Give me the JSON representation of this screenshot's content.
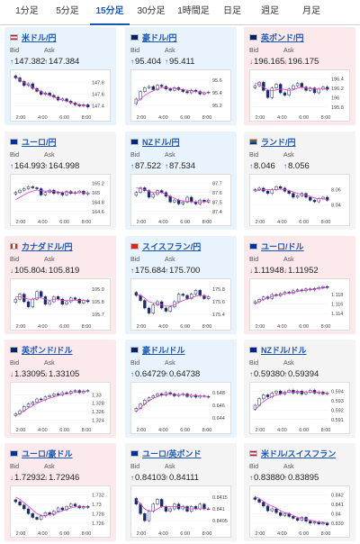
{
  "tabs": [
    "1分足",
    "5分足",
    "15分足",
    "30分足",
    "1時間足",
    "日足",
    "週足",
    "月足"
  ],
  "active_tab": "15分足",
  "labels": {
    "bid": "Bid",
    "ask": "Ask"
  },
  "colors": {
    "up_bg": "#e9f3fd",
    "down_bg": "#fbe9ec",
    "up": "#1a56b8",
    "down": "#d0302b",
    "ma": "#e040d0",
    "ma2": "#4aa3e0"
  },
  "cards": [
    {
      "name": "米ドル/円",
      "flag": "us",
      "dir": "up",
      "bid": "147.382",
      "ask": "147.384",
      "yticks": [
        "147.8",
        "147.6",
        "147.4"
      ],
      "xticks": [
        "2:00",
        "4:00",
        "6:00",
        "8:00"
      ],
      "chart_data": {
        "type": "candlestick",
        "ylim": [
          147.3,
          147.95
        ],
        "close": [
          147.88,
          147.82,
          147.75,
          147.78,
          147.7,
          147.65,
          147.6,
          147.62,
          147.58,
          147.55,
          147.5,
          147.52,
          147.48,
          147.45,
          147.42,
          147.4,
          147.42,
          147.38
        ],
        "ma": [
          147.9,
          147.85,
          147.8,
          147.76,
          147.72,
          147.68,
          147.64,
          147.61,
          147.58,
          147.55,
          147.52,
          147.5,
          147.48,
          147.46,
          147.44,
          147.42,
          147.41,
          147.4
        ]
      }
    },
    {
      "name": "豪ドル/円",
      "flag": "au",
      "dir": "up",
      "bid": "95.404",
      "ask": "95.411",
      "yticks": [
        "95.6",
        "95.4",
        "95.2"
      ],
      "xticks": [
        "2:00",
        "4:00",
        "6:00",
        "8:00"
      ],
      "chart_data": {
        "type": "candlestick",
        "ylim": [
          95.1,
          95.7
        ],
        "close": [
          95.3,
          95.42,
          95.48,
          95.5,
          95.45,
          95.52,
          95.5,
          95.46,
          95.44,
          95.48,
          95.45,
          95.42,
          95.4,
          95.44,
          95.42,
          95.38,
          95.4,
          95.41
        ],
        "ma": [
          95.25,
          95.3,
          95.36,
          95.4,
          95.43,
          95.46,
          95.48,
          95.48,
          95.47,
          95.47,
          95.46,
          95.45,
          95.44,
          95.43,
          95.42,
          95.41,
          95.4,
          95.4
        ]
      }
    },
    {
      "name": "英ポンド/円",
      "flag": "gb",
      "dir": "down",
      "bid": "196.165",
      "ask": "196.175",
      "yticks": [
        "196.4",
        "196.2",
        "196",
        "195.8"
      ],
      "xticks": [
        "2:00",
        "4:00",
        "6:00",
        "8:00"
      ],
      "chart_data": {
        "type": "candlestick",
        "ylim": [
          195.7,
          196.5
        ],
        "close": [
          196.25,
          196.32,
          196.15,
          196.0,
          196.2,
          196.28,
          196.1,
          196.05,
          196.18,
          196.25,
          196.3,
          196.22,
          196.15,
          196.2,
          196.1,
          196.18,
          196.22,
          196.17
        ],
        "ma": [
          196.3,
          196.28,
          196.22,
          196.16,
          196.14,
          196.16,
          196.18,
          196.17,
          196.15,
          196.16,
          196.2,
          196.22,
          196.2,
          196.19,
          196.18,
          196.18,
          196.18,
          196.18
        ]
      }
    },
    {
      "name": "ユーロ/円",
      "flag": "eu",
      "dir": "neutral",
      "bid": "164.993",
      "ask": "164.998",
      "yticks": [
        "165.2",
        "165",
        "164.8",
        "164.6"
      ],
      "xticks": [
        "2:00",
        "4:00",
        "6:00",
        "8:00"
      ],
      "chart_data": {
        "type": "candlestick",
        "ylim": [
          164.5,
          165.3
        ],
        "close": [
          165.0,
          165.05,
          165.08,
          165.12,
          165.1,
          165.08,
          164.95,
          165.0,
          165.05,
          164.98,
          165.0,
          164.95,
          165.02,
          164.98,
          165.0,
          165.03,
          164.97,
          164.99
        ],
        "ma": [
          164.85,
          164.9,
          164.95,
          165.0,
          165.03,
          165.05,
          165.04,
          165.03,
          165.03,
          165.02,
          165.01,
          165.0,
          165.0,
          165.0,
          164.99,
          165.0,
          165.0,
          164.99
        ]
      }
    },
    {
      "name": "NZドル/円",
      "flag": "nz",
      "dir": "up",
      "bid": "87.522",
      "ask": "87.534",
      "yticks": [
        "87.7",
        "87.6",
        "87.5",
        "87.4"
      ],
      "xticks": [
        "2:00",
        "4:00",
        "6:00",
        "8:00"
      ],
      "chart_data": {
        "type": "candlestick",
        "ylim": [
          87.35,
          87.75
        ],
        "close": [
          87.6,
          87.65,
          87.62,
          87.55,
          87.58,
          87.62,
          87.6,
          87.56,
          87.5,
          87.52,
          87.48,
          87.5,
          87.55,
          87.5,
          87.48,
          87.52,
          87.5,
          87.52
        ],
        "ma": [
          87.65,
          87.64,
          87.63,
          87.61,
          87.6,
          87.6,
          87.6,
          87.58,
          87.56,
          87.54,
          87.52,
          87.51,
          87.51,
          87.5,
          87.5,
          87.5,
          87.5,
          87.51
        ]
      }
    },
    {
      "name": "ランド/円",
      "flag": "za",
      "dir": "neutral",
      "bid": "8.046",
      "ask": "8.056",
      "yticks": [
        "8.06",
        "8.04"
      ],
      "xticks": [
        "2:00",
        "4:00",
        "6:00",
        "8:00"
      ],
      "chart_data": {
        "type": "candlestick",
        "ylim": [
          8.025,
          8.075
        ],
        "close": [
          8.06,
          8.062,
          8.058,
          8.055,
          8.06,
          8.064,
          8.062,
          8.058,
          8.055,
          8.05,
          8.052,
          8.055,
          8.05,
          8.046,
          8.044,
          8.048,
          8.05,
          8.046
        ],
        "ma": [
          8.058,
          8.059,
          8.06,
          8.06,
          8.06,
          8.06,
          8.061,
          8.06,
          8.059,
          8.057,
          8.055,
          8.054,
          8.053,
          8.051,
          8.049,
          8.048,
          8.048,
          8.047
        ]
      }
    },
    {
      "name": "カナダドル/円",
      "flag": "ca",
      "dir": "down",
      "bid": "105.804",
      "ask": "105.819",
      "yticks": [
        "105.9",
        "105.8",
        "105.7"
      ],
      "xticks": [
        "2:00",
        "4:00",
        "6:00",
        "8:00"
      ],
      "chart_data": {
        "type": "candlestick",
        "ylim": [
          105.65,
          105.95
        ],
        "close": [
          105.82,
          105.86,
          105.8,
          105.76,
          105.82,
          105.88,
          105.84,
          105.78,
          105.8,
          105.84,
          105.82,
          105.78,
          105.8,
          105.83,
          105.82,
          105.79,
          105.81,
          105.8
        ],
        "ma": [
          105.84,
          105.84,
          105.83,
          105.82,
          105.82,
          105.83,
          105.83,
          105.82,
          105.81,
          105.82,
          105.82,
          105.81,
          105.81,
          105.81,
          105.81,
          105.81,
          105.81,
          105.81
        ]
      }
    },
    {
      "name": "スイスフラン/円",
      "flag": "ch",
      "dir": "up",
      "bid": "175.684",
      "ask": "175.700",
      "yticks": [
        "175.8",
        "175.6",
        "175.4"
      ],
      "xticks": [
        "2:00",
        "4:00",
        "6:00",
        "8:00"
      ],
      "chart_data": {
        "type": "candlestick",
        "ylim": [
          175.3,
          175.9
        ],
        "close": [
          175.7,
          175.62,
          175.5,
          175.42,
          175.55,
          175.6,
          175.5,
          175.45,
          175.52,
          175.6,
          175.72,
          175.7,
          175.65,
          175.72,
          175.78,
          175.7,
          175.65,
          175.68
        ],
        "ma": [
          175.72,
          175.7,
          175.66,
          175.6,
          175.58,
          175.57,
          175.55,
          175.53,
          175.53,
          175.55,
          175.59,
          175.62,
          175.64,
          175.66,
          175.69,
          175.7,
          175.69,
          175.68
        ]
      }
    },
    {
      "name": "ユーロ/ドル",
      "flag": "eu",
      "dir": "down",
      "bid": "1.11948",
      "ask": "1.11952",
      "yticks": [
        "1.118",
        "1.116",
        "1.114"
      ],
      "xticks": [
        "2:00",
        "4:00",
        "6:00",
        "8:00"
      ],
      "chart_data": {
        "type": "candlestick",
        "ylim": [
          1.1125,
          1.1205
        ],
        "close": [
          1.1165,
          1.117,
          1.1175,
          1.1172,
          1.118,
          1.1178,
          1.1182,
          1.1185,
          1.1183,
          1.1188,
          1.119,
          1.1188,
          1.1192,
          1.119,
          1.1193,
          1.1195,
          1.1197,
          1.1195
        ],
        "ma": [
          1.116,
          1.1165,
          1.117,
          1.1173,
          1.1176,
          1.1178,
          1.118,
          1.1182,
          1.1183,
          1.1185,
          1.1187,
          1.1188,
          1.119,
          1.1191,
          1.1192,
          1.1193,
          1.1194,
          1.1195
        ]
      }
    },
    {
      "name": "英ポンド/ドル",
      "flag": "gb",
      "dir": "down",
      "bid": "1.33095",
      "ask": "1.33105",
      "yticks": [
        "1.33",
        "1.328",
        "1.326",
        "1.324"
      ],
      "xticks": [
        "2:00",
        "4:00",
        "6:00",
        "8:00"
      ],
      "chart_data": {
        "type": "candlestick",
        "ylim": [
          1.323,
          1.332
        ],
        "close": [
          1.3255,
          1.3262,
          1.3272,
          1.3278,
          1.3282,
          1.329,
          1.3288,
          1.3295,
          1.3298,
          1.3302,
          1.33,
          1.3305,
          1.3303,
          1.3308,
          1.331,
          1.3305,
          1.3309,
          1.331
        ],
        "ma": [
          1.325,
          1.3255,
          1.3262,
          1.3268,
          1.3274,
          1.328,
          1.3284,
          1.3288,
          1.3292,
          1.3295,
          1.3298,
          1.3301,
          1.3302,
          1.3304,
          1.3306,
          1.3307,
          1.3308,
          1.3309
        ]
      }
    },
    {
      "name": "豪ドル/ドル",
      "flag": "au",
      "dir": "up",
      "bid": "0.64729",
      "ask": "0.64738",
      "yticks": [
        "0.648",
        "0.646",
        "0.644"
      ],
      "xticks": [
        "2:00",
        "4:00",
        "6:00",
        "8:00"
      ],
      "chart_data": {
        "type": "candlestick",
        "ylim": [
          0.643,
          0.649
        ],
        "close": [
          0.6455,
          0.6462,
          0.6468,
          0.6472,
          0.6475,
          0.6478,
          0.6476,
          0.648,
          0.6478,
          0.6475,
          0.6477,
          0.6478,
          0.6474,
          0.6476,
          0.6473,
          0.6475,
          0.6474,
          0.6473
        ],
        "ma": [
          0.645,
          0.6456,
          0.6462,
          0.6467,
          0.6471,
          0.6474,
          0.6476,
          0.6477,
          0.6478,
          0.6477,
          0.6477,
          0.6477,
          0.6476,
          0.6476,
          0.6475,
          0.6475,
          0.6474,
          0.6474
        ]
      }
    },
    {
      "name": "NZドル/ドル",
      "flag": "nz",
      "dir": "neutral",
      "bid": "0.59380",
      "ask": "0.59394",
      "yticks": [
        "0.594",
        "0.593",
        "0.592",
        "0.591"
      ],
      "xticks": [
        "2:00",
        "4:00",
        "6:00",
        "8:00"
      ],
      "chart_data": {
        "type": "candlestick",
        "ylim": [
          0.5905,
          0.5945
        ],
        "close": [
          0.5925,
          0.5932,
          0.5936,
          0.5934,
          0.5938,
          0.594,
          0.5937,
          0.5939,
          0.5941,
          0.5938,
          0.594,
          0.5937,
          0.5939,
          0.5941,
          0.5938,
          0.5939,
          0.5937,
          0.5938
        ],
        "ma": [
          0.592,
          0.5925,
          0.5929,
          0.5932,
          0.5934,
          0.5936,
          0.5937,
          0.5938,
          0.5939,
          0.5939,
          0.5939,
          0.5939,
          0.5939,
          0.5939,
          0.5939,
          0.5939,
          0.5938,
          0.5938
        ]
      }
    },
    {
      "name": "ユーロ/豪ドル",
      "flag": "eu",
      "dir": "down",
      "bid": "1.72932",
      "ask": "1.72946",
      "yticks": [
        "1.732",
        "1.73",
        "1.728",
        "1.726"
      ],
      "xticks": [
        "2:00",
        "4:00",
        "6:00",
        "8:00"
      ],
      "chart_data": {
        "type": "candlestick",
        "ylim": [
          1.725,
          1.733
        ],
        "close": [
          1.7305,
          1.7298,
          1.729,
          1.728,
          1.7272,
          1.7268,
          1.7275,
          1.7282,
          1.7278,
          1.7285,
          1.7292,
          1.7288,
          1.7295,
          1.73,
          1.7296,
          1.7292,
          1.7295,
          1.7293
        ],
        "ma": [
          1.7315,
          1.731,
          1.7303,
          1.7296,
          1.7288,
          1.728,
          1.7276,
          1.7276,
          1.7278,
          1.728,
          1.7283,
          1.7286,
          1.7289,
          1.7292,
          1.7294,
          1.7294,
          1.7294,
          1.7294
        ]
      }
    },
    {
      "name": "ユーロ/英ポンド",
      "flag": "eu",
      "dir": "neutral",
      "bid": "0.84103",
      "ask": "0.84111",
      "yticks": [
        "0.8415",
        "0.841",
        "0.8405"
      ],
      "xticks": [
        "2:00",
        "4:00",
        "6:00",
        "8:00"
      ],
      "chart_data": {
        "type": "candlestick",
        "ylim": [
          0.8402,
          0.8418
        ],
        "close": [
          0.8412,
          0.8408,
          0.8405,
          0.8409,
          0.8412,
          0.8414,
          0.8411,
          0.8409,
          0.841,
          0.8412,
          0.841,
          0.8411,
          0.8409,
          0.8411,
          0.841,
          0.8412,
          0.841,
          0.841
        ],
        "ma": [
          0.8414,
          0.8412,
          0.841,
          0.8409,
          0.8409,
          0.841,
          0.8411,
          0.8411,
          0.8411,
          0.8411,
          0.8411,
          0.8411,
          0.841,
          0.841,
          0.841,
          0.841,
          0.841,
          0.841
        ]
      }
    },
    {
      "name": "米ドル/スイスフラン",
      "flag": "us",
      "dir": "neutral",
      "bid": "0.83880",
      "ask": "0.83895",
      "yticks": [
        "0.842",
        "0.841",
        "0.84",
        "0.839"
      ],
      "xticks": [
        "2:00",
        "4:00",
        "6:00",
        "8:00"
      ],
      "chart_data": {
        "type": "candlestick",
        "ylim": [
          0.8385,
          0.8425
        ],
        "close": [
          0.8415,
          0.8412,
          0.8408,
          0.8403,
          0.8405,
          0.8401,
          0.8398,
          0.84,
          0.8397,
          0.8395,
          0.8393,
          0.8396,
          0.8392,
          0.839,
          0.8391,
          0.8389,
          0.839,
          0.8388
        ],
        "ma": [
          0.8418,
          0.8416,
          0.8413,
          0.841,
          0.8408,
          0.8406,
          0.8403,
          0.8401,
          0.84,
          0.8398,
          0.8396,
          0.8395,
          0.8394,
          0.8393,
          0.8392,
          0.8391,
          0.8391,
          0.839
        ]
      }
    }
  ]
}
